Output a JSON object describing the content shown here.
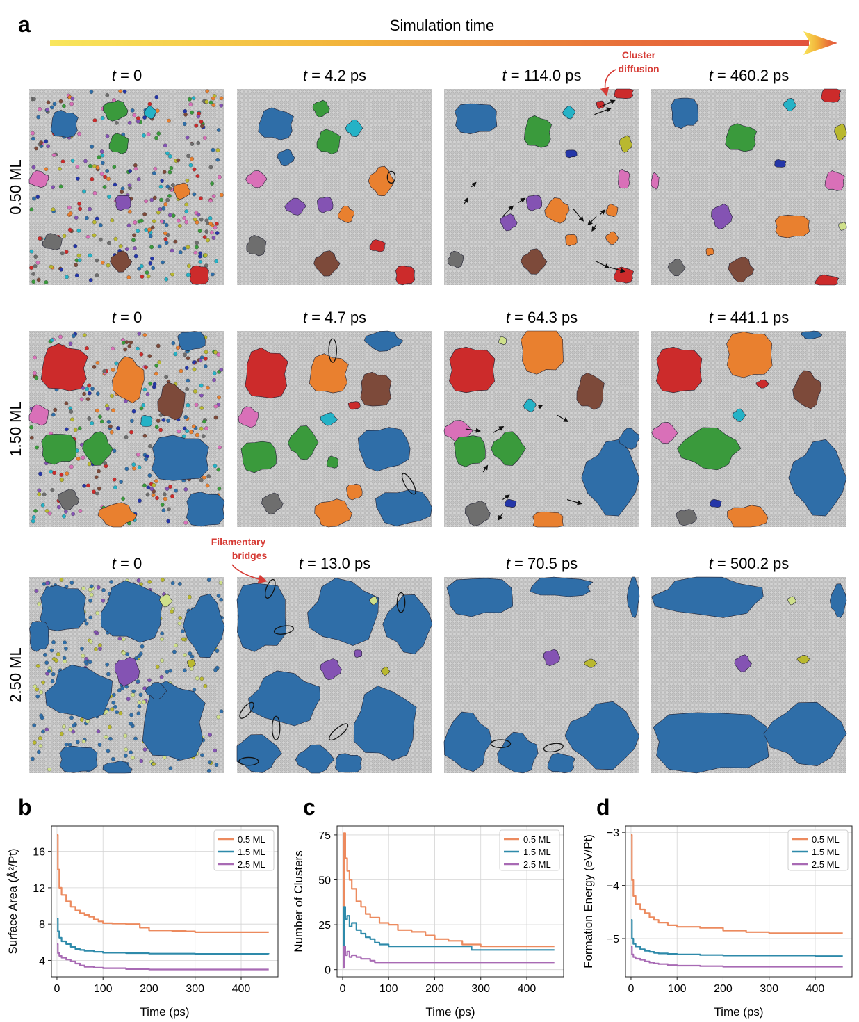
{
  "panel_letters": [
    "a",
    "b",
    "c",
    "d"
  ],
  "timeline": {
    "label": "Simulation time",
    "gradient": [
      "#f9e65c",
      "#f2b23a",
      "#e8703a",
      "#e2533c"
    ]
  },
  "annotations": {
    "cluster_diffusion": [
      "Cluster",
      "diffusion"
    ],
    "filamentary_bridges": [
      "Filamentary",
      "bridges"
    ],
    "color": "#d63b35"
  },
  "snapshots": {
    "rows": [
      {
        "label": "0.50 ML",
        "times": [
          "t = 0",
          "t = 4.2 ps",
          "t = 114.0 ps",
          "t = 460.2 ps"
        ]
      },
      {
        "label": "1.50 ML",
        "times": [
          "t = 0",
          "t = 4.7 ps",
          "t = 64.3 ps",
          "t = 441.1 ps"
        ]
      },
      {
        "label": "2.50 ML",
        "times": [
          "t = 0",
          "t = 13.0 ps",
          "t = 70.5 ps",
          "t = 500.2 ps"
        ]
      }
    ],
    "substrate_color": "#c8c8c8",
    "cluster_colors": {
      "blue": "#2f6ea8",
      "orange": "#e9802f",
      "green": "#3a9a3c",
      "red": "#cc2b2b",
      "purple": "#8453b3",
      "brown": "#7d4a3a",
      "pink": "#d970b8",
      "gray": "#6e6e6e",
      "olive": "#b9b82f",
      "cyan": "#25b2c6",
      "navy": "#2436a8",
      "lime": "#cfe08a"
    }
  },
  "series_colors": {
    "0.5 ML": "#ec8a5e",
    "1.5 ML": "#2e8aaa",
    "2.5 ML": "#a86ab4"
  },
  "chart_data": [
    {
      "panel": "b",
      "type": "line",
      "title": "",
      "xlabel": "Time (ps)",
      "ylabel": "Surface Area (Å²/Pt)",
      "xlim": [
        -12,
        480
      ],
      "ylim": [
        2.2,
        18.8
      ],
      "xticks": [
        0,
        100,
        200,
        300,
        400
      ],
      "yticks": [
        4,
        8,
        12,
        16
      ],
      "grid": true,
      "legend": "top-right",
      "series": [
        {
          "name": "0.5 ML",
          "x": [
            0,
            2,
            5,
            10,
            20,
            30,
            40,
            50,
            60,
            70,
            80,
            90,
            100,
            120,
            150,
            180,
            200,
            250,
            280,
            300,
            350,
            400,
            460
          ],
          "y": [
            17.8,
            14.0,
            12.0,
            11.2,
            10.5,
            9.9,
            9.5,
            9.2,
            9.0,
            8.8,
            8.5,
            8.3,
            8.1,
            8.05,
            8.0,
            7.6,
            7.3,
            7.25,
            7.2,
            7.1,
            7.1,
            7.1,
            7.1
          ]
        },
        {
          "name": "1.5 ML",
          "x": [
            0,
            2,
            5,
            10,
            20,
            30,
            40,
            50,
            60,
            80,
            100,
            150,
            200,
            300,
            400,
            460
          ],
          "y": [
            8.6,
            7.2,
            6.5,
            6.1,
            5.8,
            5.5,
            5.25,
            5.15,
            5.05,
            4.95,
            4.85,
            4.8,
            4.75,
            4.72,
            4.72,
            4.7
          ]
        },
        {
          "name": "2.5 ML",
          "x": [
            0,
            2,
            5,
            10,
            20,
            30,
            40,
            50,
            60,
            80,
            100,
            150,
            200,
            300,
            400,
            460
          ],
          "y": [
            5.8,
            4.8,
            4.5,
            4.3,
            4.1,
            3.9,
            3.65,
            3.45,
            3.3,
            3.2,
            3.15,
            3.05,
            3.0,
            3.0,
            3.0,
            3.0
          ]
        }
      ]
    },
    {
      "panel": "c",
      "type": "line",
      "title": "",
      "xlabel": "Time (ps)",
      "ylabel": "Number of Clusters",
      "xlim": [
        -12,
        480
      ],
      "ylim": [
        -4,
        80
      ],
      "xticks": [
        0,
        100,
        200,
        300,
        400
      ],
      "yticks": [
        0,
        25,
        50,
        75
      ],
      "grid": true,
      "legend": "top-right",
      "series": [
        {
          "name": "0.5 ML",
          "x": [
            0,
            3,
            6,
            10,
            15,
            20,
            30,
            40,
            50,
            60,
            80,
            100,
            120,
            150,
            180,
            200,
            230,
            260,
            280,
            300,
            350,
            400,
            460
          ],
          "y": [
            12,
            76,
            62,
            55,
            50,
            45,
            38,
            35,
            31,
            29,
            26,
            25,
            22,
            21,
            19,
            17,
            16,
            14,
            14,
            13,
            13,
            13,
            13
          ]
        },
        {
          "name": "1.5 ML",
          "x": [
            0,
            3,
            6,
            10,
            15,
            20,
            30,
            40,
            50,
            60,
            70,
            80,
            100,
            130,
            150,
            200,
            250,
            280,
            300,
            400,
            460
          ],
          "y": [
            8,
            35,
            28,
            30,
            24,
            26,
            22,
            20,
            18,
            17,
            15,
            14,
            13,
            13,
            13,
            13,
            13,
            11,
            11,
            11,
            11
          ]
        },
        {
          "name": "2.5 ML",
          "x": [
            0,
            3,
            6,
            10,
            15,
            20,
            30,
            40,
            50,
            60,
            70,
            80,
            100,
            150,
            200,
            300,
            400,
            460
          ],
          "y": [
            1,
            13,
            8,
            10,
            7,
            8,
            7,
            6,
            6,
            5,
            4,
            4,
            4,
            4,
            4,
            4,
            4,
            4
          ]
        }
      ]
    },
    {
      "panel": "d",
      "type": "line",
      "title": "",
      "xlabel": "Time (ps)",
      "ylabel": "Formation Energy (eV/Pt)",
      "xlim": [
        -12,
        480
      ],
      "ylim": [
        -5.72,
        -2.88
      ],
      "xticks": [
        0,
        100,
        200,
        300,
        400
      ],
      "yticks": [
        -3,
        -4,
        -5
      ],
      "grid": true,
      "legend": "top-right",
      "series": [
        {
          "name": "0.5 ML",
          "x": [
            0,
            2,
            5,
            10,
            20,
            30,
            40,
            50,
            60,
            80,
            100,
            150,
            200,
            250,
            300,
            350,
            400,
            460
          ],
          "y": [
            -3.05,
            -3.9,
            -4.2,
            -4.35,
            -4.45,
            -4.52,
            -4.6,
            -4.65,
            -4.7,
            -4.75,
            -4.78,
            -4.8,
            -4.85,
            -4.88,
            -4.9,
            -4.9,
            -4.9,
            -4.9
          ]
        },
        {
          "name": "1.5 ML",
          "x": [
            0,
            2,
            5,
            10,
            20,
            30,
            40,
            50,
            60,
            80,
            100,
            150,
            200,
            300,
            400,
            460
          ],
          "y": [
            -4.65,
            -5.0,
            -5.1,
            -5.15,
            -5.2,
            -5.23,
            -5.25,
            -5.27,
            -5.28,
            -5.29,
            -5.3,
            -5.31,
            -5.32,
            -5.32,
            -5.33,
            -5.33
          ]
        },
        {
          "name": "2.5 ML",
          "x": [
            0,
            2,
            5,
            10,
            20,
            30,
            40,
            50,
            60,
            80,
            100,
            150,
            200,
            300,
            400,
            460
          ],
          "y": [
            -5.15,
            -5.3,
            -5.35,
            -5.38,
            -5.4,
            -5.43,
            -5.45,
            -5.47,
            -5.48,
            -5.5,
            -5.51,
            -5.52,
            -5.53,
            -5.53,
            -5.53,
            -5.53
          ]
        }
      ]
    }
  ]
}
